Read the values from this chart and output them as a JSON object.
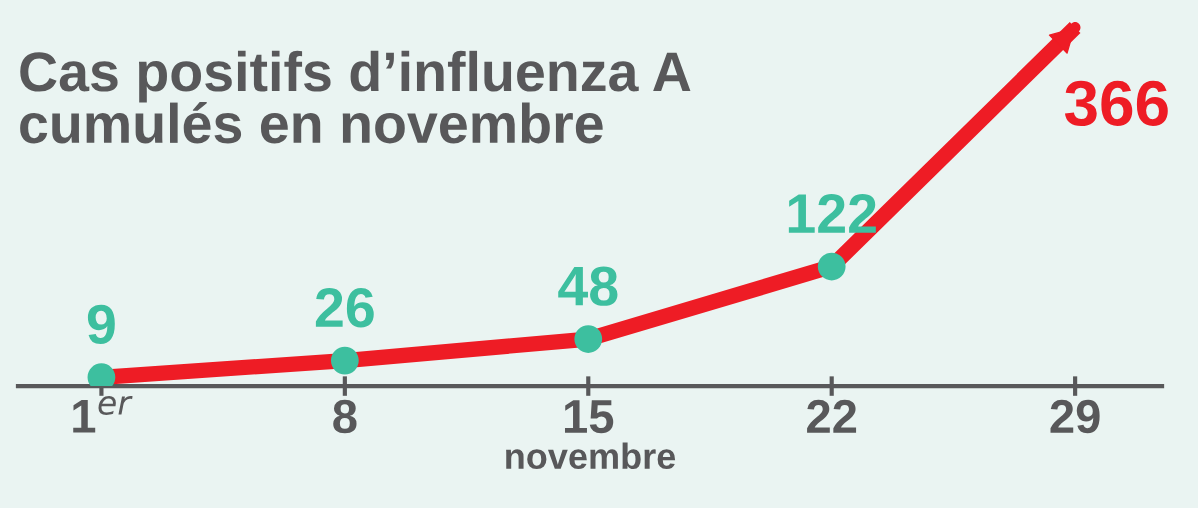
{
  "chart_data": {
    "type": "line",
    "title": "Cas positifs d’influenza A\ncumulés en novembre",
    "xlabel": "novembre",
    "x": [
      1,
      8,
      15,
      22,
      29
    ],
    "series": [
      {
        "color": "#ee1c25",
        "values": [
          9,
          26,
          48,
          122,
          366
        ],
        "colors": [
          "#3dbf9f",
          "#3dbf9f",
          "#3dbf9f",
          "#3dbf9f",
          "#ee1c25"
        ]
      }
    ],
    "xlim": [
      -1.4,
      31.5
    ],
    "xticks": [
      {
        "value": 1,
        "label": "1$^{er}$"
      },
      8,
      15,
      22,
      29
    ],
    "data_labels": true,
    "marker": "circle",
    "grid": false,
    "legend": false
  }
}
